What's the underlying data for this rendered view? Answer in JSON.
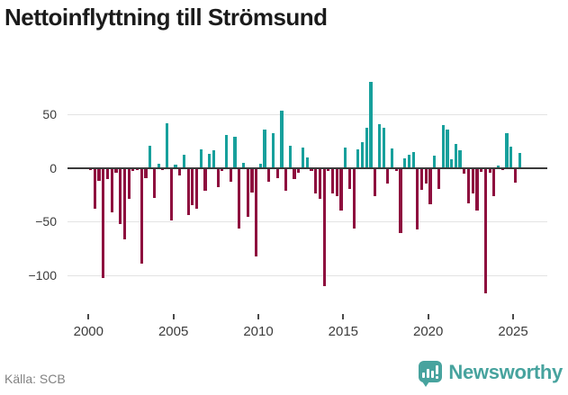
{
  "title": "Nettoinflyttning till Strömsund",
  "footer": {
    "source": "Källa: SCB",
    "brand": "Newsworthy"
  },
  "colors": {
    "positive": "#17a09c",
    "negative": "#8e0e3e",
    "zero_axis": "#3a3a3a",
    "gridline": "#e3e3e3",
    "brand_teal": "#47a39e",
    "title_text": "#1b1b1b",
    "tick_text": "#3c3c3c",
    "source_text": "#828282"
  },
  "chart_data": {
    "type": "bar",
    "title": "Nettoinflyttning till Strömsund",
    "xlabel": "",
    "ylabel": "",
    "x_unit": "quarter",
    "start": "2000-Q1",
    "end": "2025-Q2",
    "ylim": [
      -125,
      88
    ],
    "grid": "horizontal",
    "ytick_labels": [
      "50",
      "0",
      "−50",
      "−100"
    ],
    "yticks": [
      50,
      0,
      -50,
      -100
    ],
    "xticks": [
      2000,
      2005,
      2010,
      2015,
      2020,
      2025
    ],
    "xtick_labels": [
      "2000",
      "2005",
      "2010",
      "2015",
      "2020",
      "2025"
    ],
    "values": [
      -1,
      -37,
      -11,
      -102,
      -10,
      -41,
      -4,
      -52,
      -66,
      -28,
      -2,
      -1,
      -89,
      -9,
      21,
      -27,
      4,
      -1,
      42,
      -48,
      3,
      -6,
      12,
      -43,
      -34,
      -37,
      17,
      -21,
      13,
      16,
      -17,
      -2,
      31,
      -12,
      29,
      -56,
      5,
      -45,
      -22,
      -82,
      4,
      36,
      -12,
      32,
      -9,
      53,
      -21,
      21,
      -10,
      -4,
      19,
      10,
      -2,
      -23,
      -28,
      -110,
      -2,
      -23,
      -26,
      -39,
      19,
      -19,
      -56,
      17,
      24,
      37,
      80,
      -26,
      41,
      37,
      -14,
      18,
      -2,
      -60,
      9,
      12,
      15,
      -57,
      -20,
      -14,
      -33,
      11,
      -19,
      40,
      36,
      8,
      22,
      16,
      -5,
      -32,
      -23,
      -39,
      -3,
      -116,
      -4,
      -26,
      2,
      -1,
      32,
      20,
      -13,
      14
    ]
  }
}
